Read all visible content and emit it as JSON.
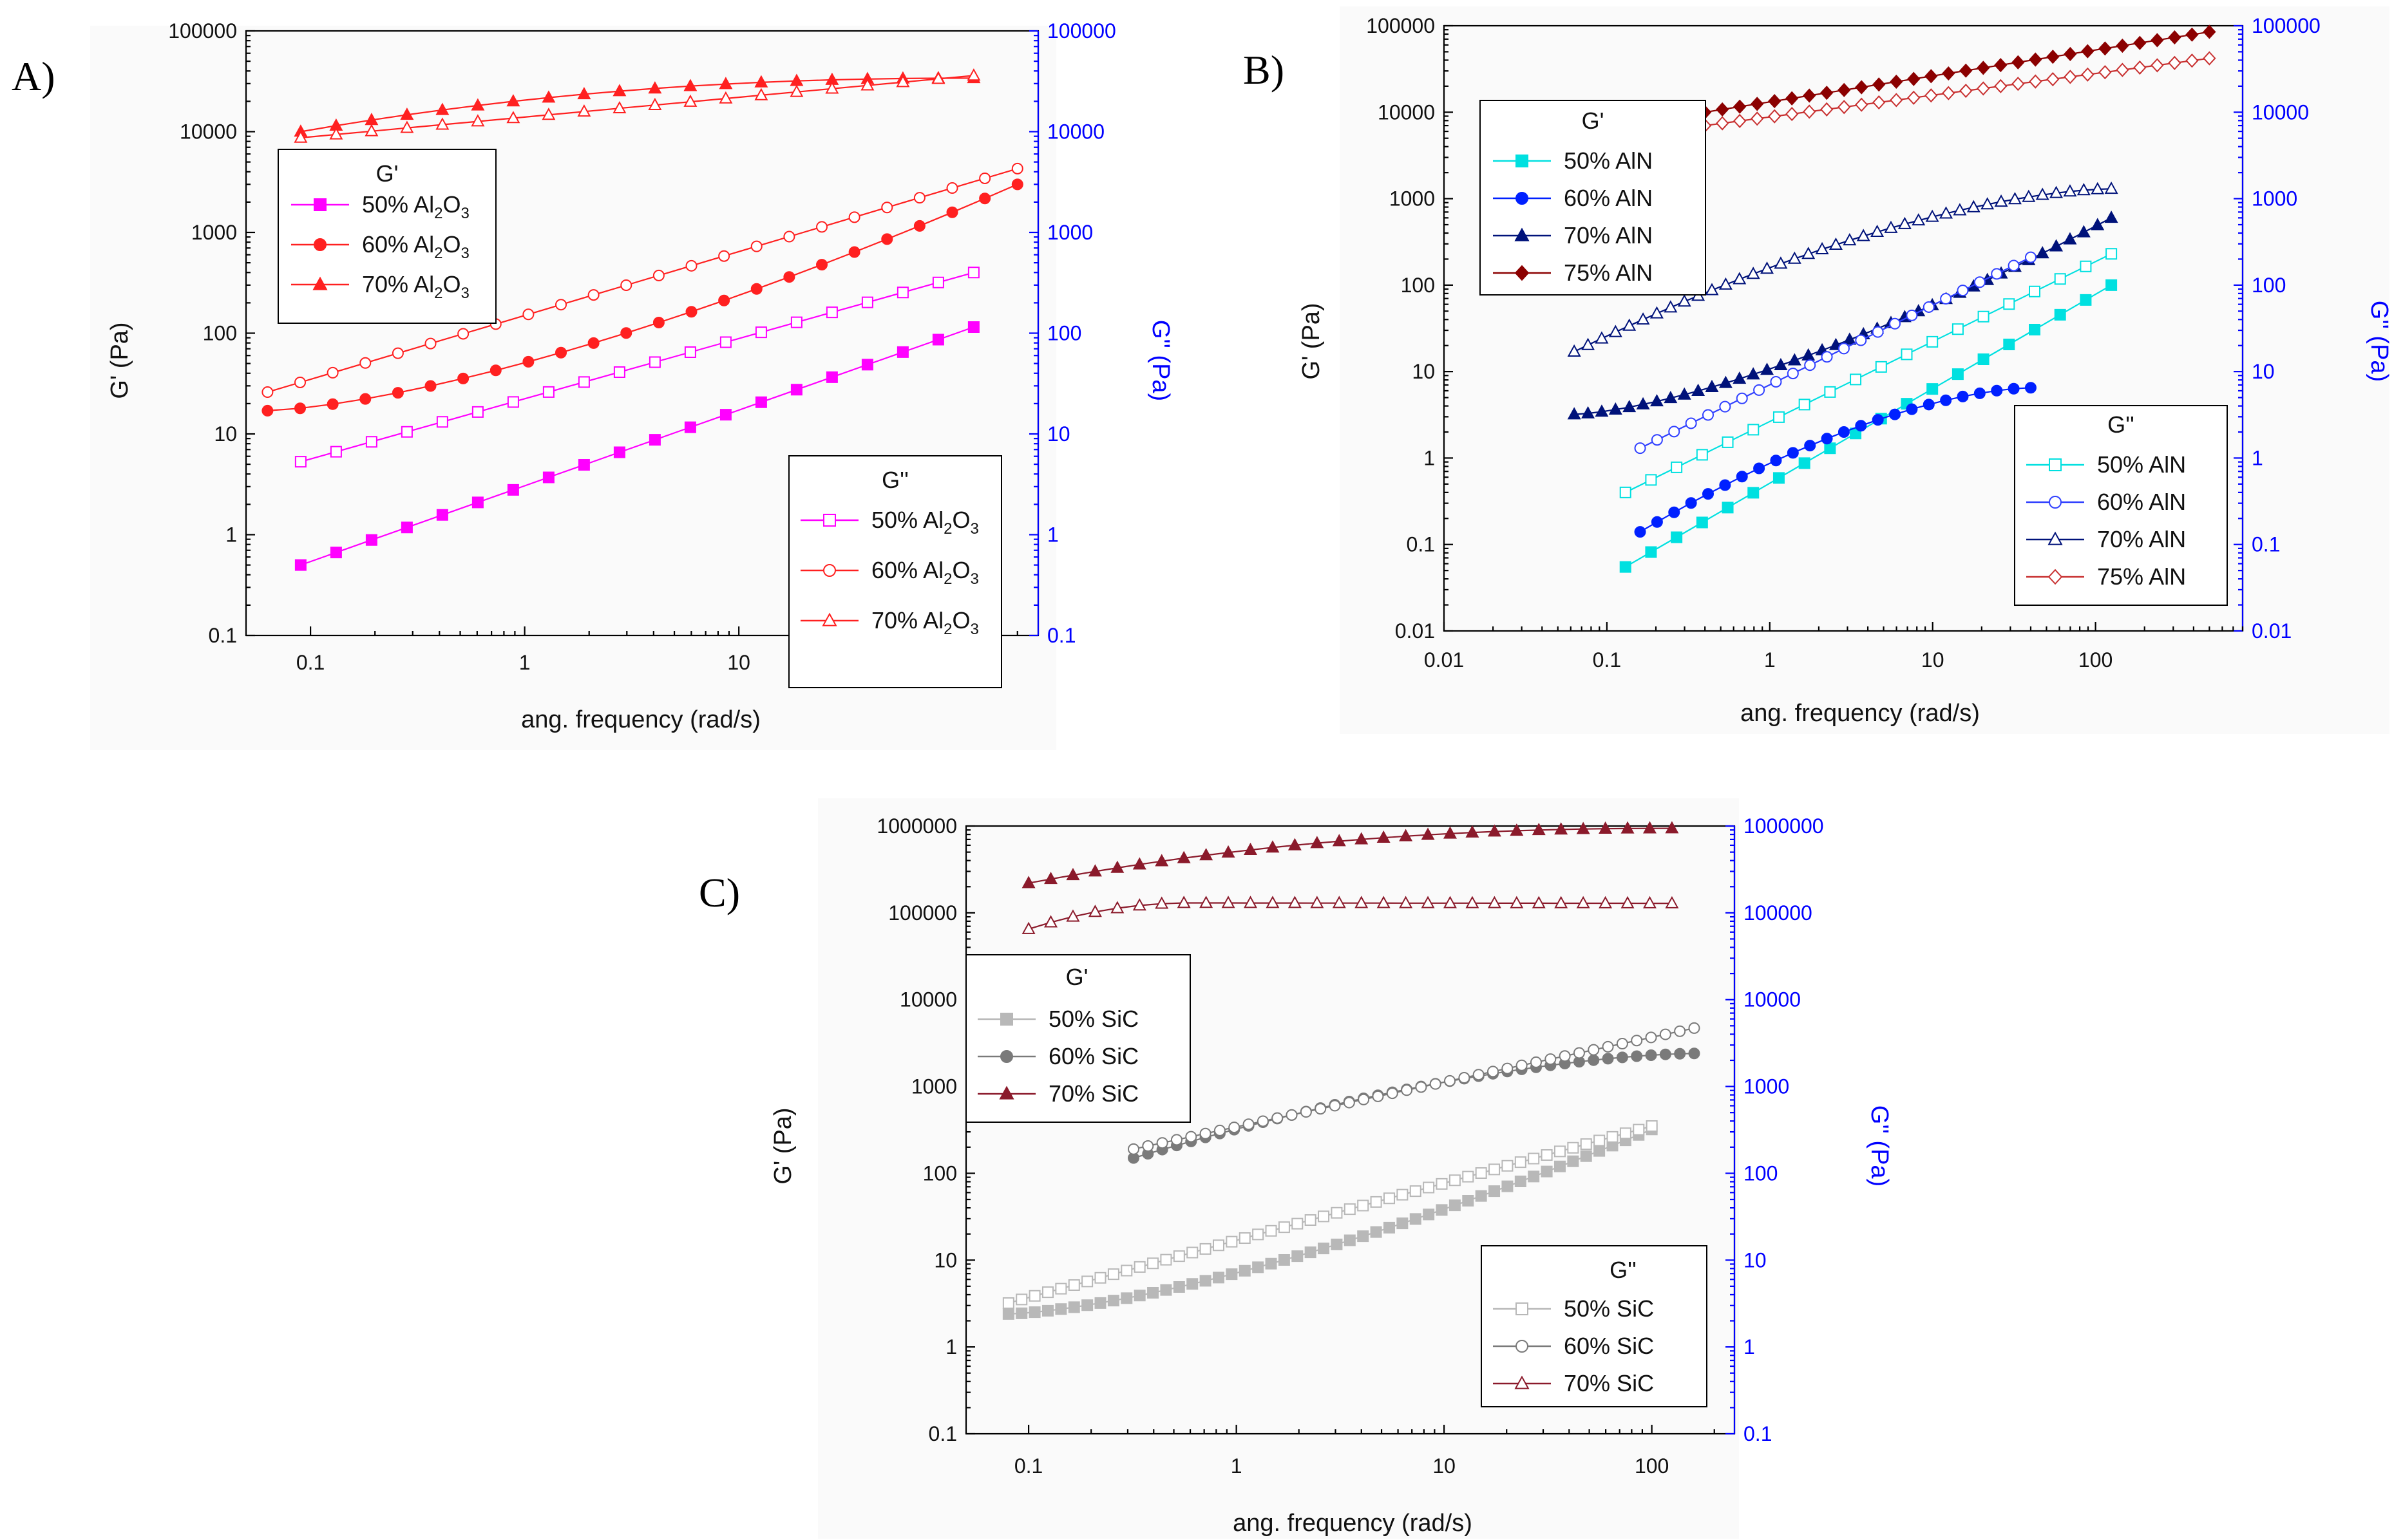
{
  "chart_data": [
    {
      "panel": "A)",
      "type": "line",
      "xscale": "log",
      "yscale": "log",
      "xlabel": "ang. frequency (rad/s)",
      "ylabel": "G' (Pa)",
      "ylabel_right": "G'' (Pa)",
      "xlim": [
        0.05,
        250
      ],
      "ylim": [
        0.1,
        100000
      ],
      "xticks": [
        "0.1",
        "1",
        "10",
        "100"
      ],
      "yticks": [
        "0.1",
        "1",
        "10",
        "100",
        "1000",
        "10000",
        "100000"
      ],
      "legend_storage": {
        "title": "G'",
        "entries": [
          "50% Al2O3",
          "60% Al2O3",
          "70% Al2O3"
        ],
        "position": "upper-left"
      },
      "legend_loss": {
        "title": "G''",
        "entries": [
          "50% Al2O3",
          "60% Al2O3",
          "70% Al2O3"
        ],
        "position": "lower-right"
      },
      "series": [
        {
          "name": "G' 50% Al2O3",
          "color": "#ff00ff",
          "marker": "square",
          "filled": true,
          "xmin": 0.09,
          "xmax": 125,
          "ystart": 0.5,
          "yend": 115,
          "shape": "power",
          "n": 20
        },
        {
          "name": "G' 60% Al2O3",
          "color": "#ff2020",
          "marker": "circle",
          "filled": true,
          "xmin": 0.063,
          "xmax": 200,
          "ystart": 17,
          "yend": 3000,
          "shape": "upturn",
          "n": 24
        },
        {
          "name": "G' 70% Al2O3",
          "color": "#ff2020",
          "marker": "triangle",
          "filled": true,
          "xmin": 0.09,
          "xmax": 125,
          "ystart": 10000,
          "yend": 34000,
          "shape": "plateau",
          "n": 20
        },
        {
          "name": "G'' 50% Al2O3",
          "color": "#ff00ff",
          "marker": "square",
          "filled": false,
          "xmin": 0.09,
          "xmax": 125,
          "ystart": 5.3,
          "yend": 400,
          "shape": "power",
          "n": 20
        },
        {
          "name": "G'' 60% Al2O3",
          "color": "#ff2020",
          "marker": "circle",
          "filled": false,
          "xmin": 0.063,
          "xmax": 200,
          "ystart": 26,
          "yend": 4300,
          "shape": "power",
          "n": 24
        },
        {
          "name": "G'' 70% Al2O3",
          "color": "#ff2020",
          "marker": "triangle",
          "filled": false,
          "xmin": 0.09,
          "xmax": 125,
          "ystart": 8700,
          "yend": 36000,
          "shape": "power",
          "n": 20
        }
      ]
    },
    {
      "panel": "B)",
      "type": "line",
      "xscale": "log",
      "yscale": "log",
      "xlabel": "ang. frequency (rad/s)",
      "ylabel": "G' (Pa)",
      "ylabel_right": "G'' (Pa)",
      "xlim": [
        0.01,
        800
      ],
      "ylim": [
        0.01,
        100000
      ],
      "xticks": [
        "0.01",
        "0.1",
        "1",
        "10",
        "100"
      ],
      "yticks": [
        "0.01",
        "0.1",
        "1",
        "10",
        "100",
        "1000",
        "10000",
        "100000"
      ],
      "legend_storage": {
        "title": "G'",
        "entries": [
          "50% AlN",
          "60% AlN",
          "70% AlN",
          "75% AlN"
        ],
        "position": "upper-left"
      },
      "legend_loss": {
        "title": "G''",
        "entries": [
          "50% AlN",
          "60% AlN",
          "70% AlN",
          "75% AlN"
        ],
        "position": "lower-right"
      },
      "series": [
        {
          "name": "G' 50% AlN",
          "color": "#00e0e0",
          "marker": "square",
          "filled": true,
          "xmin": 0.13,
          "xmax": 125,
          "ystart": 0.055,
          "yend": 100,
          "shape": "power",
          "n": 20
        },
        {
          "name": "G' 60% AlN",
          "color": "#0020ff",
          "marker": "circle",
          "filled": true,
          "xmin": 0.16,
          "xmax": 40,
          "ystart": 0.14,
          "yend": 6.5,
          "shape": "sat",
          "n": 24
        },
        {
          "name": "G' 70% AlN",
          "color": "#00127a",
          "marker": "triangle",
          "filled": true,
          "xmin": 0.063,
          "xmax": 125,
          "ystart": 3.2,
          "yend": 600,
          "shape": "upturn",
          "n": 40
        },
        {
          "name": "G' 75% AlN",
          "color": "#8b0000",
          "marker": "diamond",
          "filled": true,
          "xmin": 0.4,
          "xmax": 500,
          "ystart": 10000,
          "yend": 85000,
          "shape": "power",
          "n": 30
        },
        {
          "name": "G'' 50% AlN",
          "color": "#00e0e0",
          "marker": "square",
          "filled": false,
          "xmin": 0.13,
          "xmax": 125,
          "ystart": 0.4,
          "yend": 230,
          "shape": "power",
          "n": 20
        },
        {
          "name": "G'' 60% AlN",
          "color": "#3040ff",
          "marker": "circle",
          "filled": false,
          "xmin": 0.16,
          "xmax": 40,
          "ystart": 1.3,
          "yend": 210,
          "shape": "power",
          "n": 24
        },
        {
          "name": "G'' 70% AlN",
          "color": "#00127a",
          "marker": "triangle",
          "filled": false,
          "xmin": 0.063,
          "xmax": 125,
          "ystart": 17,
          "yend": 1300,
          "shape": "sat",
          "n": 40
        },
        {
          "name": "G'' 75% AlN",
          "color": "#c83030",
          "marker": "diamond",
          "filled": false,
          "xmin": 0.4,
          "xmax": 500,
          "ystart": 7000,
          "yend": 42000,
          "shape": "power",
          "n": 30
        }
      ]
    },
    {
      "panel": "C)",
      "type": "line",
      "xscale": "log",
      "yscale": "log",
      "xlabel": "ang. frequency (rad/s)",
      "ylabel": "G' (Pa)",
      "ylabel_right": "G'' (Pa)",
      "xlim": [
        0.05,
        250
      ],
      "ylim": [
        0.1,
        1000000
      ],
      "xticks": [
        "0.1",
        "1",
        "10",
        "100"
      ],
      "yticks": [
        "0.1",
        "1",
        "10",
        "100",
        "1000",
        "10000",
        "100000",
        "1000000"
      ],
      "legend_storage": {
        "title": "G'",
        "entries": [
          "50% SiC",
          "60% SiC",
          "70% SiC"
        ],
        "position": "upper-left"
      },
      "legend_loss": {
        "title": "G''",
        "entries": [
          "50% SiC",
          "60% SiC",
          "70% SiC"
        ],
        "position": "lower-right"
      },
      "series": [
        {
          "name": "G' 50% SiC",
          "color": "#b8b8b8",
          "marker": "square",
          "filled": true,
          "xmin": 0.08,
          "xmax": 100,
          "ystart": 2.4,
          "yend": 320,
          "shape": "upturn",
          "n": 50
        },
        {
          "name": "G' 60% SiC",
          "color": "#7a7a7a",
          "marker": "circle",
          "filled": true,
          "xmin": 0.32,
          "xmax": 160,
          "ystart": 150,
          "yend": 2400,
          "shape": "sat",
          "n": 40
        },
        {
          "name": "G' 70% SiC",
          "color": "#8b1a2b",
          "marker": "triangle",
          "filled": true,
          "xmin": 0.1,
          "xmax": 125,
          "ystart": 220000,
          "yend": 940000,
          "shape": "plateau",
          "n": 30
        },
        {
          "name": "G'' 50% SiC",
          "color": "#b8b8b8",
          "marker": "square",
          "filled": false,
          "xmin": 0.08,
          "xmax": 100,
          "ystart": 3.2,
          "yend": 350,
          "shape": "power",
          "n": 50
        },
        {
          "name": "G'' 60% SiC",
          "color": "#7a7a7a",
          "marker": "circle",
          "filled": false,
          "xmin": 0.32,
          "xmax": 160,
          "ystart": 190,
          "yend": 4700,
          "shape": "power",
          "n": 40
        },
        {
          "name": "G'' 70% SiC",
          "color": "#8b1a2b",
          "marker": "triangle",
          "filled": false,
          "xmin": 0.1,
          "xmax": 125,
          "ystart": 65000,
          "yend": 130000,
          "shape": "hump",
          "n": 30
        }
      ]
    }
  ]
}
